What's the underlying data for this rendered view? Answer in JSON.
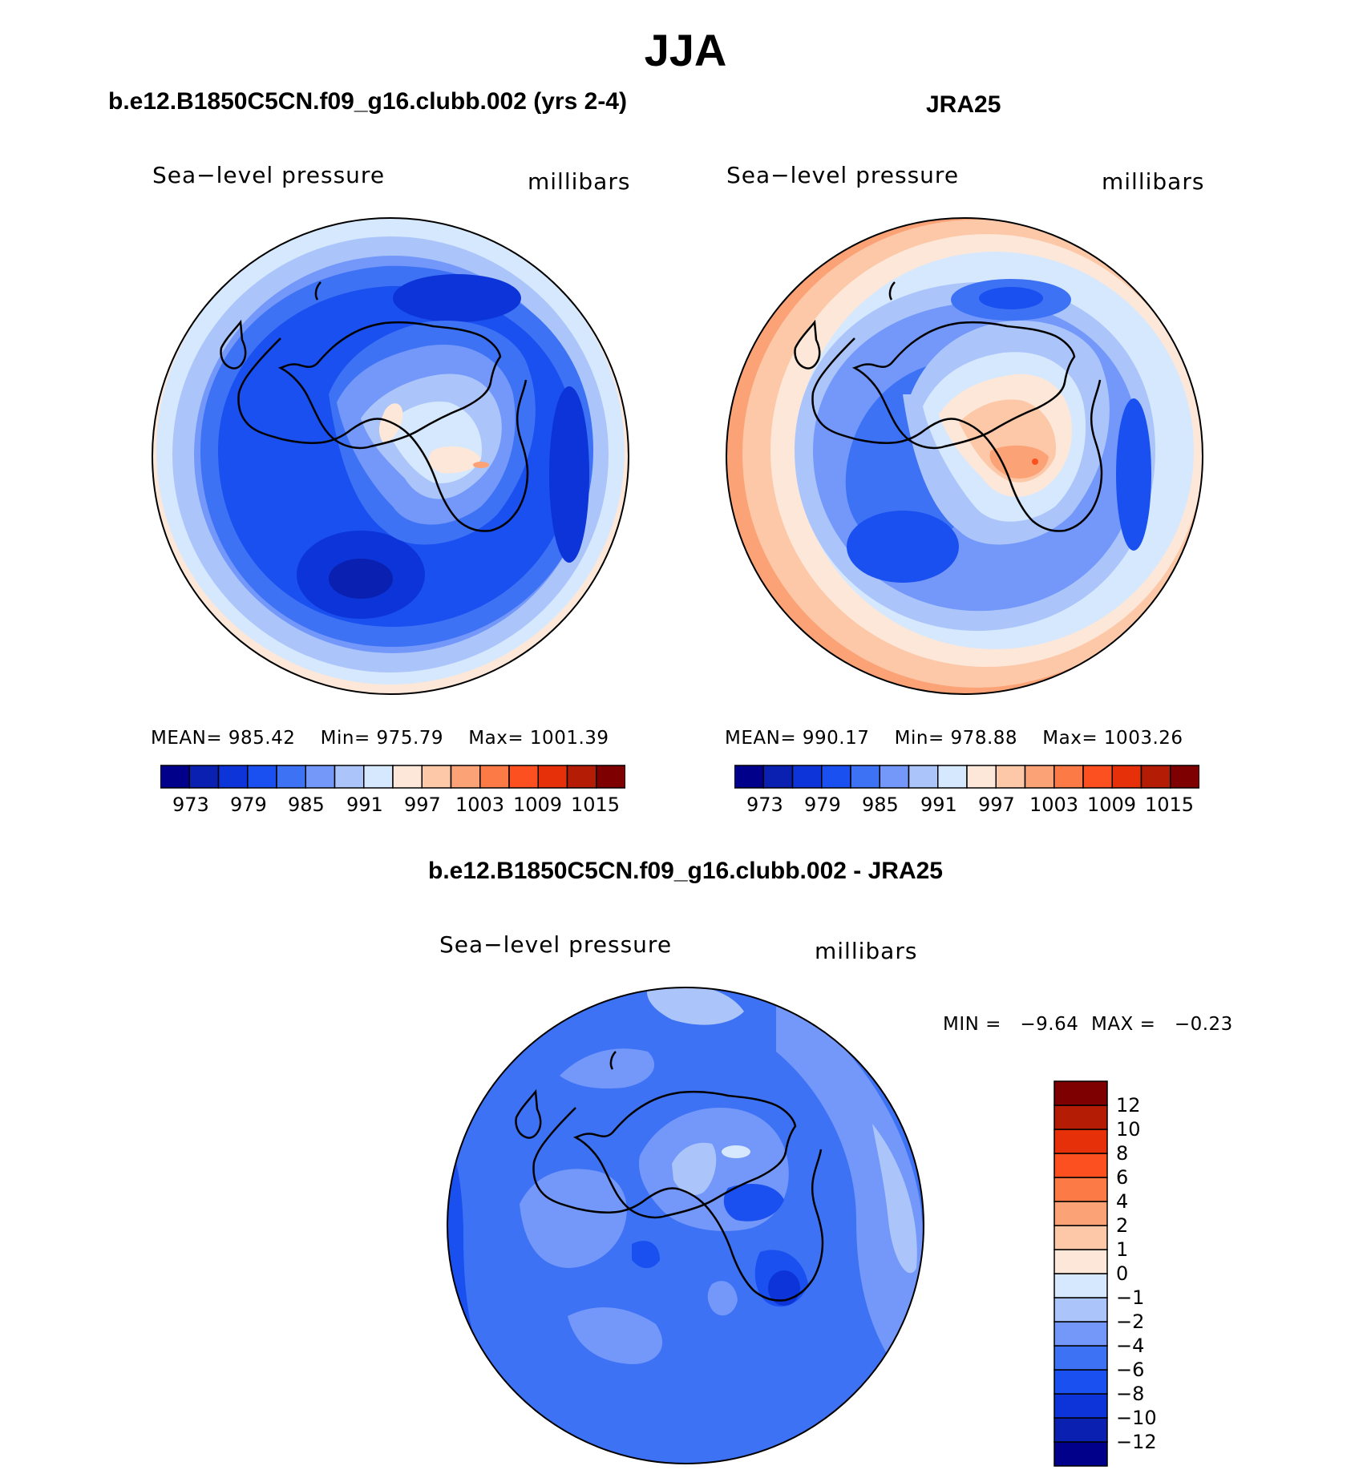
{
  "figure": {
    "title": "JJA"
  },
  "panels": [
    {
      "title": "b.e12.B1850C5CN.f09_g16.clubb.002 (yrs 2-4)",
      "variable": "Sea−level pressure",
      "units": "millibars",
      "mean_label": "MEAN=",
      "mean": "985.42",
      "min_label": "Min=",
      "min": "975.79",
      "max_label": "Max=",
      "max": "1001.39"
    },
    {
      "title": "JRA25",
      "variable": "Sea−level pressure",
      "units": "millibars",
      "mean_label": "MEAN=",
      "mean": "990.17",
      "min_label": "Min=",
      "min": "978.88",
      "max_label": "Max=",
      "max": "1003.26"
    },
    {
      "title": "b.e12.B1850C5CN.f09_g16.clubb.002 - JRA25",
      "variable": "Sea−level pressure",
      "units": "millibars",
      "min_label": "MIN =",
      "min": "−9.64",
      "max_label": "MAX =",
      "max": "−0.23"
    }
  ],
  "colorbar_abs": {
    "colors": [
      "#00008a",
      "#0a20b0",
      "#0c34d8",
      "#1a4ff0",
      "#3e72f5",
      "#7398fa",
      "#abc5fb",
      "#d6e8fd",
      "#fde7d8",
      "#fcc8a8",
      "#fba276",
      "#fc7a46",
      "#fc5020",
      "#e5300a",
      "#b41c06",
      "#7e0000"
    ],
    "ticks": [
      "973",
      "979",
      "985",
      "991",
      "997",
      "1003",
      "1009",
      "1015"
    ]
  },
  "colorbar_diff": {
    "colors": [
      "#00008a",
      "#0a20b0",
      "#0c34d8",
      "#1a4ff0",
      "#3e72f5",
      "#7398fa",
      "#abc5fb",
      "#d6e8fd",
      "#fde7d8",
      "#fcc8a8",
      "#fba276",
      "#fc7a46",
      "#fc5020",
      "#e5300a",
      "#b41c06",
      "#7e0000"
    ],
    "ticks": [
      "−12",
      "−10",
      "−8",
      "−6",
      "−4",
      "−2",
      "−1",
      "0",
      "1",
      "2",
      "4",
      "6",
      "8",
      "10",
      "12"
    ]
  }
}
